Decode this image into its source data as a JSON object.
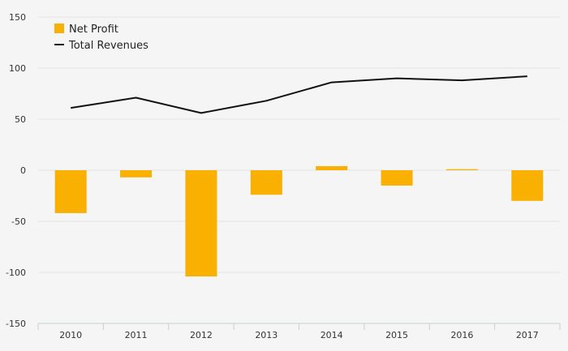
{
  "chart_data": {
    "type": "bar",
    "categories": [
      "2010",
      "2011",
      "2012",
      "2013",
      "2014",
      "2015",
      "2016",
      "2017"
    ],
    "series": [
      {
        "name": "Net Profit",
        "type": "bar",
        "color": "#f9b000",
        "values": [
          -42,
          -7,
          -104,
          -24,
          4,
          -15,
          1,
          -30
        ]
      },
      {
        "name": "Total Revenues",
        "type": "line",
        "color": "#111111",
        "values": [
          61,
          71,
          56,
          68,
          86,
          90,
          88,
          92
        ]
      }
    ],
    "title": "",
    "xlabel": "",
    "ylabel": "",
    "ylim": [
      -150,
      150
    ],
    "yticks": [
      "150",
      "100",
      "50",
      "0",
      "-50",
      "-100",
      "-150"
    ],
    "grid": true,
    "legend_position": "top-left"
  },
  "colors": {
    "background": "#f5f5f5",
    "grid": "#e3e3e3",
    "axis": "#c8cdd8"
  }
}
